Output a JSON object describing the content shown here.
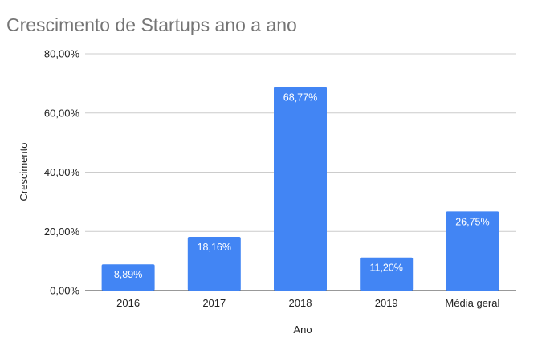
{
  "chart_data": {
    "type": "bar",
    "title": "Crescimento de Startups ano a ano",
    "xlabel": "Ano",
    "ylabel": "Crescimento",
    "categories": [
      "2016",
      "2017",
      "2018",
      "2019",
      "Média geral"
    ],
    "values": [
      8.89,
      18.16,
      68.77,
      11.2,
      26.75
    ],
    "data_labels": [
      "8,89%",
      "18,16%",
      "68,77%",
      "11,20%",
      "26,75%"
    ],
    "ylim": [
      0,
      80
    ],
    "yticks": [
      0,
      20,
      40,
      60,
      80
    ],
    "ytick_labels": [
      "0,00%",
      "20,00%",
      "40,00%",
      "60,00%",
      "80,00%"
    ],
    "grid": true,
    "legend": "none",
    "colors": {
      "bar": "#4285f4",
      "grid": "#cccccc",
      "title": "#757575"
    }
  }
}
